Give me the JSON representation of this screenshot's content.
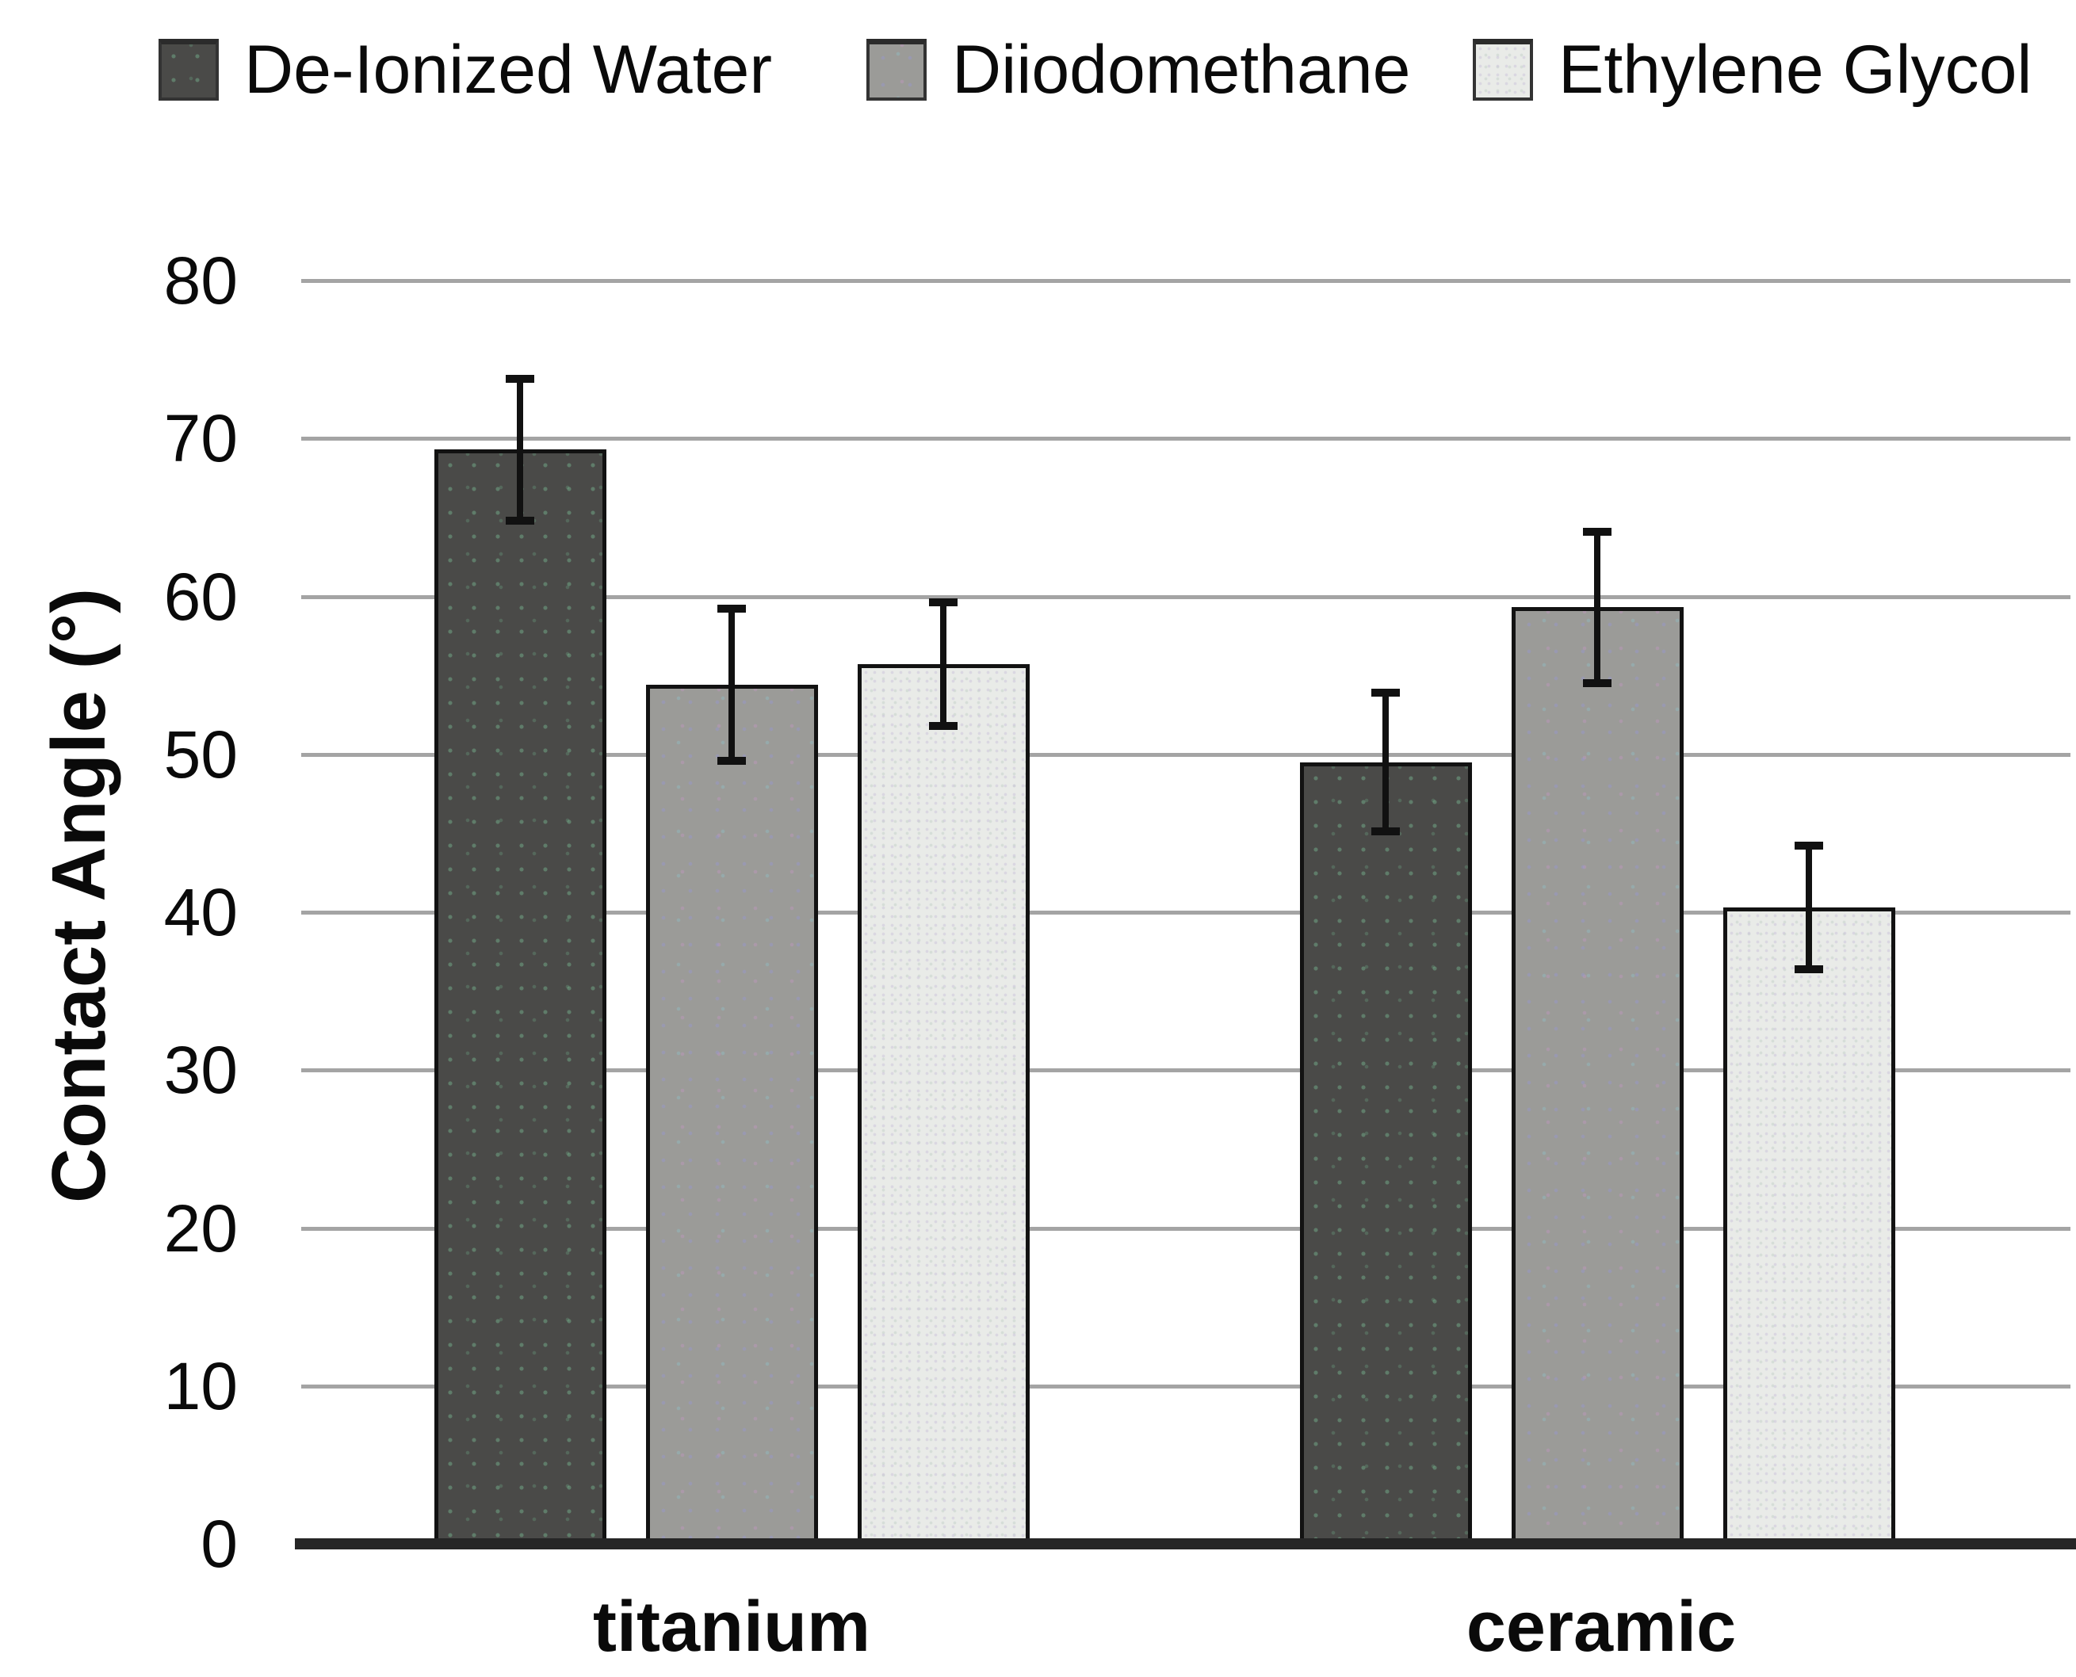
{
  "chart_data": {
    "type": "bar",
    "title": "",
    "xlabel": "",
    "ylabel": "Contact Angle (°)",
    "ylim": [
      0,
      80
    ],
    "ytick_step": 10,
    "yticks": [
      0,
      10,
      20,
      30,
      40,
      50,
      60,
      70,
      80
    ],
    "grid": true,
    "legend_position": "top",
    "categories": [
      "titanium",
      "ceramic"
    ],
    "series": [
      {
        "name": "De-Ionized Water",
        "values": [
          69.3,
          49.5
        ],
        "errors": [
          4.5,
          4.4
        ],
        "color": "#4a4a48"
      },
      {
        "name": "Diiodomethane",
        "values": [
          54.4,
          59.3
        ],
        "errors": [
          4.8,
          4.8
        ],
        "color": "#9b9b98"
      },
      {
        "name": "Ethylene Glycol",
        "values": [
          55.7,
          40.3
        ],
        "errors": [
          3.9,
          3.9
        ],
        "color": "#e9ebe8"
      }
    ],
    "colors": {
      "gridline": "#a4a4a4",
      "baseline": "#262626",
      "bar_border": "#121212",
      "error_bar": "#111111",
      "text": "#0a0a0a",
      "background": "#ffffff"
    }
  }
}
